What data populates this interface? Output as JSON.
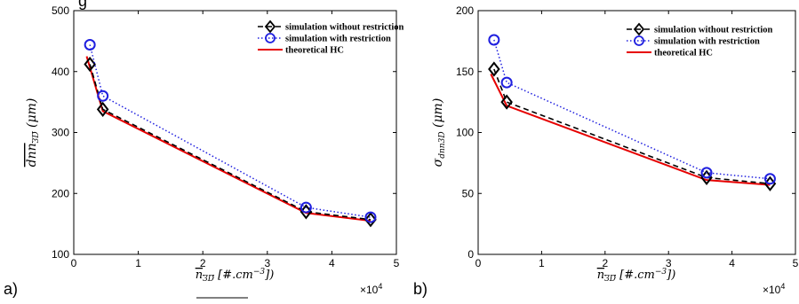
{
  "chart_data": [
    {
      "type": "line",
      "panel_label": "a)",
      "clipped_title": "g",
      "xlabel": "n_3D [#.cm^-3])",
      "ylabel": "dnn_3D (μm)",
      "x_multiplier": "×10^4",
      "xlim": [
        0,
        5
      ],
      "ylim": [
        100,
        500
      ],
      "xticks": [
        "0",
        "1",
        "2",
        "3",
        "4",
        "5"
      ],
      "yticks": [
        "100",
        "200",
        "300",
        "400",
        "500"
      ],
      "x": [
        0.25,
        0.45,
        3.6,
        4.6
      ],
      "series": [
        {
          "name": "simulation without restriction",
          "style": "dashed",
          "marker": "diamond",
          "color": "#000000",
          "values": [
            412,
            338,
            170,
            157
          ]
        },
        {
          "name": "simulation with restriction",
          "style": "dotted",
          "marker": "circle",
          "color": "#1f1fdf",
          "values": [
            444,
            360,
            177,
            161
          ]
        },
        {
          "name": "theoretical HC",
          "style": "solid",
          "marker": "none",
          "color": "#e60000",
          "x": [
            0.2,
            0.45,
            3.6,
            4.6
          ],
          "values": [
            425,
            335,
            168,
            155
          ]
        }
      ],
      "legend_position": "top-right"
    },
    {
      "type": "line",
      "panel_label": "b)",
      "xlabel": "n_3D [#.cm^-3])",
      "ylabel": "σ_dnn3D (μm)",
      "x_multiplier": "×10^4",
      "xlim": [
        0,
        5
      ],
      "ylim": [
        0,
        200
      ],
      "xticks": [
        "0",
        "1",
        "2",
        "3",
        "4",
        "5"
      ],
      "yticks": [
        "0",
        "50",
        "100",
        "150",
        "200"
      ],
      "x": [
        0.25,
        0.45,
        3.6,
        4.6
      ],
      "series": [
        {
          "name": "simulation without restriction",
          "style": "dashed",
          "marker": "diamond",
          "color": "#000000",
          "values": [
            152,
            125,
            63,
            58
          ]
        },
        {
          "name": "simulation with restriction",
          "style": "dotted",
          "marker": "circle",
          "color": "#1f1fdf",
          "values": [
            176,
            141,
            67,
            62
          ]
        },
        {
          "name": "theoretical HC",
          "style": "solid",
          "marker": "none",
          "color": "#e60000",
          "x": [
            0.2,
            0.45,
            3.6,
            4.6
          ],
          "values": [
            148,
            122,
            61,
            57
          ]
        }
      ],
      "legend_position": "top-right"
    }
  ]
}
